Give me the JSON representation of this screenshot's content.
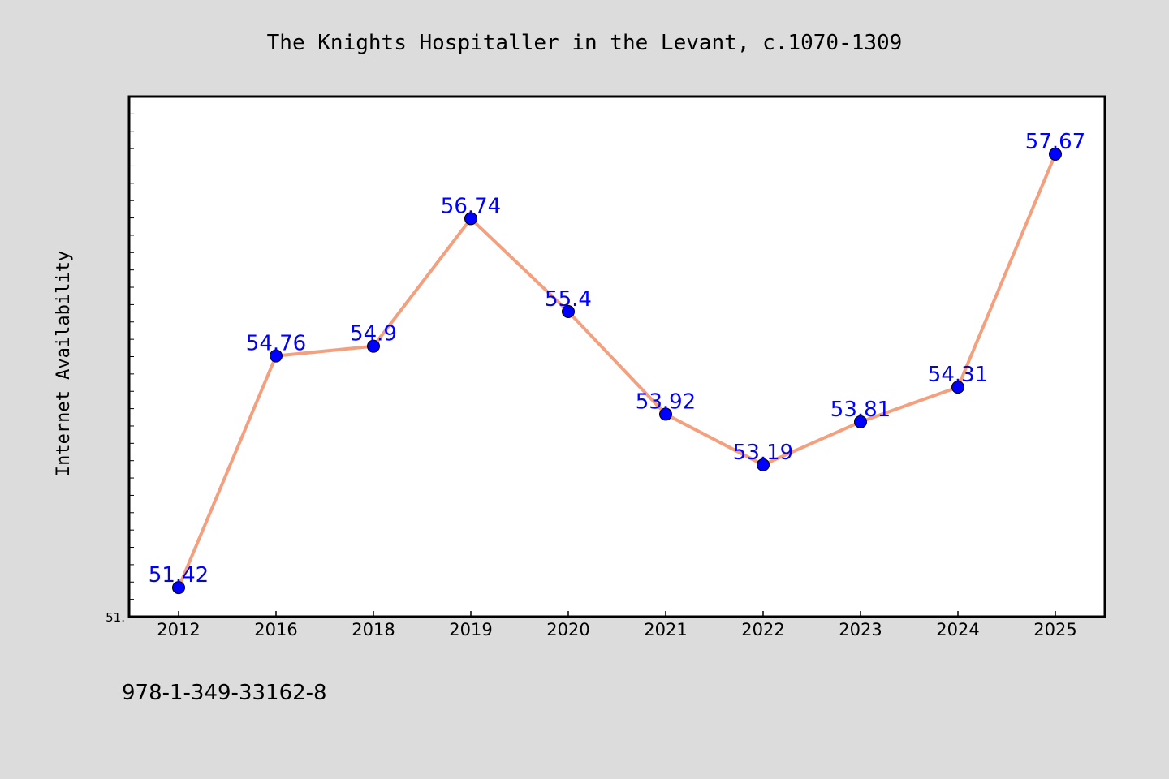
{
  "chart_data": {
    "type": "line",
    "title": "The Knights Hospitaller in the Levant, c.1070-1309",
    "xlabel": "",
    "ylabel": "Internet Availability",
    "categories": [
      "2012",
      "2016",
      "2018",
      "2019",
      "2020",
      "2021",
      "2022",
      "2023",
      "2024",
      "2025"
    ],
    "series": [
      {
        "values": [
          51.42,
          54.76,
          54.9,
          56.74,
          55.4,
          53.92,
          53.19,
          53.81,
          54.31,
          57.67
        ],
        "labels": [
          "51.42",
          "54.76",
          "54.9",
          "56.74",
          "55.4",
          "53.92",
          "53.19",
          "53.81",
          "54.31",
          "57.67"
        ],
        "line_color": "#f4a07f",
        "marker_color": "#0000ff"
      }
    ],
    "ylim": [
      51.0,
      58.5
    ],
    "ytick_labels": [
      "51."
    ],
    "grid": false,
    "legend": "none"
  },
  "footnote": "978-1-349-33162-8",
  "colors": {
    "background": "#dcdcdc",
    "plot_background": "#ffffff",
    "label": "#0000ff"
  }
}
